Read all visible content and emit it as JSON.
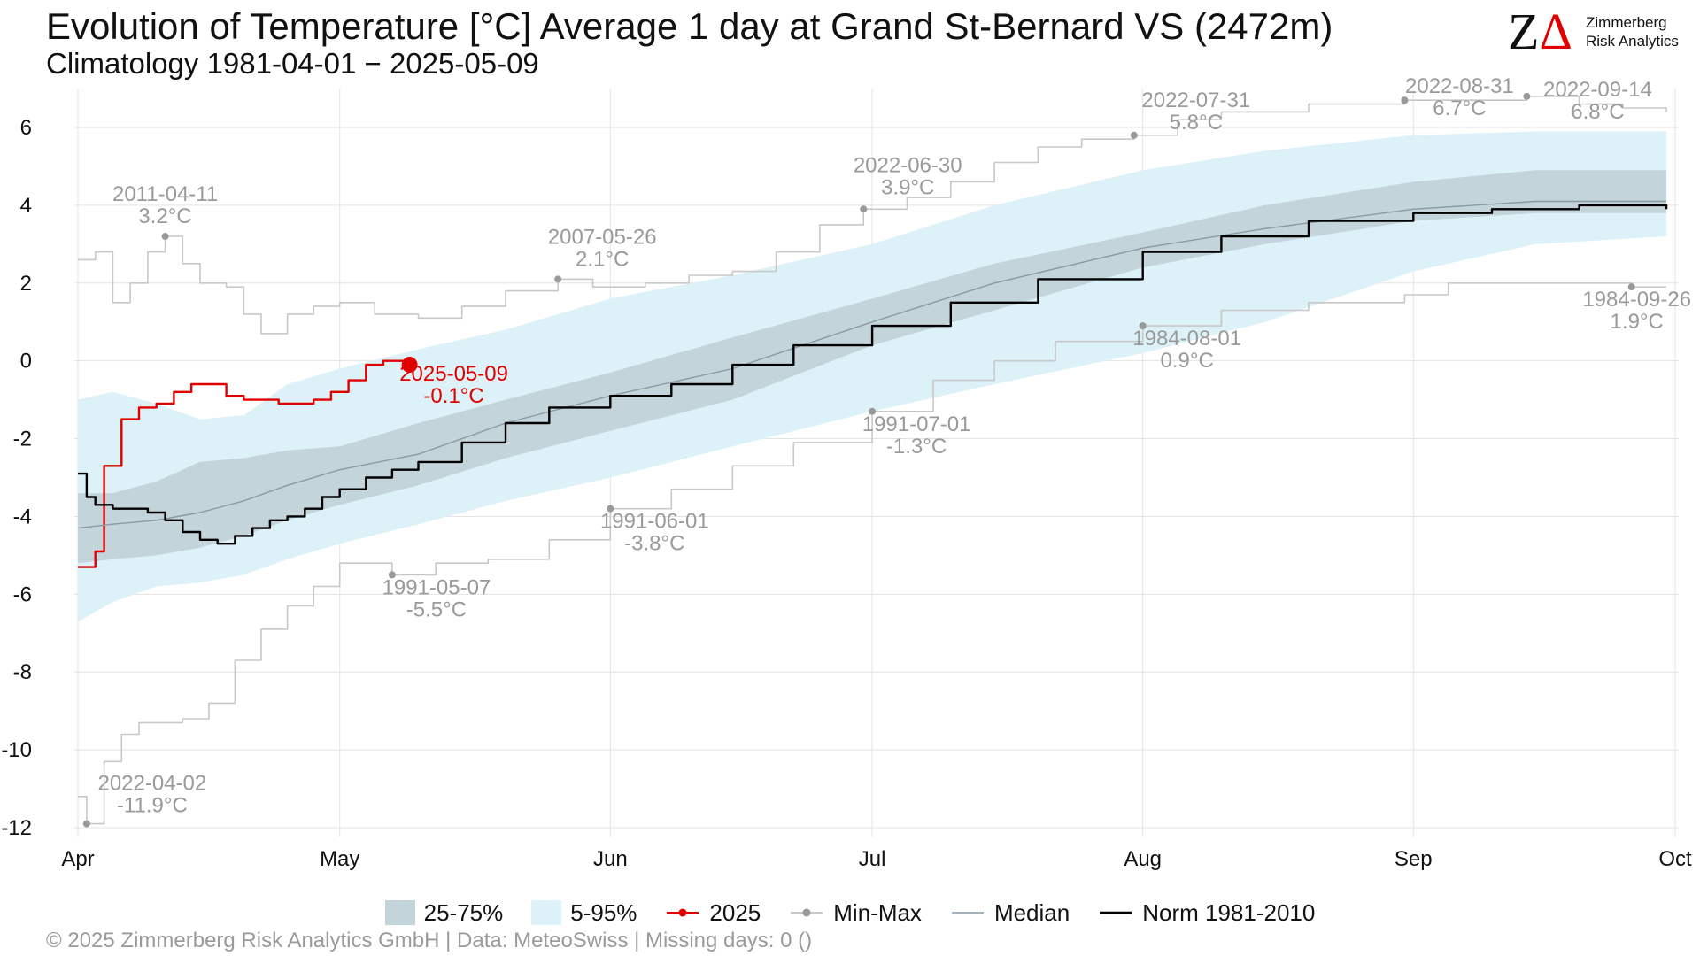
{
  "header": {
    "title": "Evolution of Temperature [°C] Average 1 day at Grand St-Bernard  VS (2472m)",
    "subtitle": "Climatology 1981-04-01 − 2025-05-09"
  },
  "logo": {
    "mark_z": "Z",
    "mark_delta": "Δ",
    "line1": "Zimmerberg",
    "line2": "Risk Analytics"
  },
  "legend": {
    "band_iqr": "25-75%",
    "band_90": "5-95%",
    "current": "2025",
    "minmax": "Min-Max",
    "median": "Median",
    "norm": "Norm 1981-2010"
  },
  "footer": "©  2025 Zimmerberg Risk Analytics GmbH | Data: MeteoSwiss | Missing days: 0 ()",
  "colors": {
    "current": "#e00000",
    "minmax": "#c8c8c8",
    "minmax_marker": "#999999",
    "median": "#8a9aa4",
    "norm": "#000000",
    "band_iqr": "#c3d4da",
    "band_90": "#ddf1f8",
    "grid": "#e3e3e3"
  },
  "chart_data": {
    "type": "line",
    "x_axis": {
      "type": "date",
      "range": [
        "1981-04-01",
        "1981-10-01"
      ],
      "ticks": [
        {
          "date": "04-01",
          "label": "Apr"
        },
        {
          "date": "05-01",
          "label": "May"
        },
        {
          "date": "06-01",
          "label": "Jun"
        },
        {
          "date": "07-01",
          "label": "Jul"
        },
        {
          "date": "08-01",
          "label": "Aug"
        },
        {
          "date": "09-01",
          "label": "Sep"
        },
        {
          "date": "10-01",
          "label": "Oct"
        }
      ]
    },
    "y_axis": {
      "ylim": [
        -12,
        7
      ],
      "ticks": [
        -12,
        -10,
        -8,
        -6,
        -4,
        -2,
        0,
        2,
        4,
        6
      ]
    },
    "grid": true,
    "legend_position": "bottom",
    "band_5_95": {
      "x": [
        "04-01",
        "04-05",
        "04-10",
        "04-15",
        "04-20",
        "04-25",
        "05-01",
        "05-10",
        "05-20",
        "06-01",
        "06-15",
        "07-01",
        "07-15",
        "08-01",
        "08-15",
        "09-01",
        "09-15",
        "09-30"
      ],
      "lower": [
        -6.7,
        -6.2,
        -5.8,
        -5.7,
        -5.5,
        -5.1,
        -4.7,
        -4.2,
        -3.6,
        -3.0,
        -2.2,
        -1.3,
        -0.6,
        0.2,
        1.0,
        2.3,
        3.0,
        3.2
      ],
      "upper": [
        -1.0,
        -0.8,
        -1.1,
        -1.5,
        -1.4,
        -0.6,
        -0.2,
        0.3,
        0.8,
        1.6,
        2.2,
        3.0,
        4.0,
        4.9,
        5.4,
        5.8,
        5.9,
        5.9
      ]
    },
    "band_25_75": {
      "x": [
        "04-01",
        "04-05",
        "04-10",
        "04-15",
        "04-20",
        "04-25",
        "05-01",
        "05-10",
        "05-20",
        "06-01",
        "06-15",
        "07-01",
        "07-15",
        "08-01",
        "08-15",
        "09-01",
        "09-15",
        "09-30"
      ],
      "lower": [
        -5.2,
        -5.1,
        -5.0,
        -4.8,
        -4.5,
        -4.1,
        -3.7,
        -3.2,
        -2.5,
        -1.8,
        -1.0,
        0.4,
        1.3,
        2.4,
        3.0,
        3.6,
        3.8,
        3.8
      ],
      "upper": [
        -3.4,
        -3.4,
        -3.1,
        -2.6,
        -2.5,
        -2.3,
        -2.2,
        -1.6,
        -1.0,
        -0.3,
        0.6,
        1.6,
        2.5,
        3.3,
        4.0,
        4.6,
        4.9,
        4.9
      ]
    },
    "series": [
      {
        "name": "2025",
        "color": "#e00000",
        "x": [
          "04-01",
          "04-03",
          "04-04",
          "04-06",
          "04-08",
          "04-10",
          "04-12",
          "04-14",
          "04-16",
          "04-18",
          "04-20",
          "04-22",
          "04-24",
          "04-26",
          "04-28",
          "04-30",
          "05-02",
          "05-04",
          "05-06",
          "05-09"
        ],
        "y": [
          -5.3,
          -4.9,
          -2.7,
          -1.5,
          -1.2,
          -1.1,
          -0.8,
          -0.6,
          -0.6,
          -0.9,
          -1.0,
          -1.0,
          -1.1,
          -1.1,
          -1.0,
          -0.8,
          -0.5,
          -0.1,
          0.0,
          -0.1
        ]
      },
      {
        "name": "Min-Max",
        "role": "max",
        "color": "#c8c8c8",
        "x": [
          "04-01",
          "04-03",
          "04-05",
          "04-07",
          "04-09",
          "04-11",
          "04-13",
          "04-15",
          "04-18",
          "04-20",
          "04-22",
          "04-25",
          "04-28",
          "05-01",
          "05-05",
          "05-10",
          "05-15",
          "05-20",
          "05-26",
          "05-30",
          "06-05",
          "06-10",
          "06-15",
          "06-20",
          "06-25",
          "06-30",
          "07-05",
          "07-10",
          "07-15",
          "07-20",
          "07-25",
          "07-31",
          "08-05",
          "08-10",
          "08-20",
          "08-31",
          "09-05",
          "09-10",
          "09-14",
          "09-20",
          "09-25",
          "09-30"
        ],
        "y": [
          2.6,
          2.8,
          1.5,
          2.0,
          2.8,
          3.2,
          2.5,
          2.0,
          1.9,
          1.2,
          0.7,
          1.2,
          1.4,
          1.5,
          1.2,
          1.1,
          1.4,
          1.8,
          2.1,
          1.9,
          2.0,
          2.2,
          2.3,
          2.8,
          3.5,
          3.9,
          4.2,
          4.6,
          5.1,
          5.5,
          5.7,
          5.8,
          6.2,
          6.4,
          6.6,
          6.7,
          6.7,
          6.7,
          6.8,
          6.6,
          6.5,
          6.4
        ]
      },
      {
        "name": "Min-Max",
        "role": "min",
        "color": "#c8c8c8",
        "x": [
          "04-01",
          "04-02",
          "04-04",
          "04-06",
          "04-08",
          "04-10",
          "04-13",
          "04-16",
          "04-19",
          "04-22",
          "04-25",
          "04-28",
          "05-01",
          "05-04",
          "05-07",
          "05-12",
          "05-18",
          "05-25",
          "06-01",
          "06-08",
          "06-15",
          "06-22",
          "07-01",
          "07-08",
          "07-15",
          "07-22",
          "08-01",
          "08-10",
          "08-20",
          "08-31",
          "09-05",
          "09-10",
          "09-15",
          "09-20",
          "09-26",
          "09-30"
        ],
        "y": [
          -11.2,
          -11.9,
          -10.3,
          -9.6,
          -9.3,
          -9.3,
          -9.2,
          -8.8,
          -7.7,
          -6.9,
          -6.3,
          -5.8,
          -5.2,
          -5.2,
          -5.5,
          -5.2,
          -5.1,
          -4.6,
          -3.8,
          -3.3,
          -2.7,
          -2.1,
          -1.3,
          -0.5,
          0.0,
          0.5,
          0.9,
          1.3,
          1.5,
          1.7,
          2.0,
          2.0,
          2.0,
          2.0,
          1.9,
          1.9
        ]
      },
      {
        "name": "Median",
        "color": "#8a9aa4",
        "x": [
          "04-01",
          "04-05",
          "04-10",
          "04-15",
          "04-20",
          "04-25",
          "05-01",
          "05-10",
          "05-20",
          "06-01",
          "06-15",
          "07-01",
          "07-15",
          "08-01",
          "08-15",
          "09-01",
          "09-15",
          "09-30"
        ],
        "y": [
          -4.3,
          -4.2,
          -4.1,
          -3.9,
          -3.6,
          -3.2,
          -2.8,
          -2.4,
          -1.6,
          -0.9,
          -0.2,
          1.0,
          2.0,
          2.9,
          3.4,
          3.9,
          4.1,
          4.1
        ]
      },
      {
        "name": "Norm 1981-2010",
        "color": "#000000",
        "x": [
          "04-01",
          "04-02",
          "04-03",
          "04-05",
          "04-07",
          "04-09",
          "04-11",
          "04-13",
          "04-15",
          "04-17",
          "04-19",
          "04-21",
          "04-23",
          "04-25",
          "04-27",
          "04-29",
          "05-01",
          "05-04",
          "05-07",
          "05-10",
          "05-15",
          "05-20",
          "05-25",
          "06-01",
          "06-08",
          "06-15",
          "06-22",
          "07-01",
          "07-10",
          "07-20",
          "08-01",
          "08-10",
          "08-20",
          "09-01",
          "09-10",
          "09-20",
          "09-30"
        ],
        "y": [
          -2.9,
          -3.5,
          -3.7,
          -3.8,
          -3.8,
          -3.9,
          -4.1,
          -4.4,
          -4.6,
          -4.7,
          -4.5,
          -4.3,
          -4.1,
          -4.0,
          -3.8,
          -3.5,
          -3.3,
          -3.0,
          -2.8,
          -2.6,
          -2.1,
          -1.6,
          -1.2,
          -0.9,
          -0.6,
          -0.1,
          0.4,
          0.9,
          1.5,
          2.1,
          2.8,
          3.2,
          3.6,
          3.8,
          3.9,
          4.0,
          3.9
        ]
      }
    ],
    "annotations": [
      {
        "x": "04-11",
        "y": 3.2,
        "date": "2011-04-11",
        "value": "3.2°C",
        "kind": "max"
      },
      {
        "x": "05-26",
        "y": 2.1,
        "date": "2007-05-26",
        "value": "2.1°C",
        "kind": "max"
      },
      {
        "x": "06-30",
        "y": 3.9,
        "date": "2022-06-30",
        "value": "3.9°C",
        "kind": "max"
      },
      {
        "x": "07-31",
        "y": 5.8,
        "date": "2022-07-31",
        "value": "5.8°C",
        "kind": "max"
      },
      {
        "x": "08-31",
        "y": 6.7,
        "date": "2022-08-31",
        "value": "6.7°C",
        "kind": "max"
      },
      {
        "x": "09-14",
        "y": 6.8,
        "date": "2022-09-14",
        "value": "6.8°C",
        "kind": "max"
      },
      {
        "x": "04-02",
        "y": -11.9,
        "date": "2022-04-02",
        "value": "-11.9°C",
        "kind": "min"
      },
      {
        "x": "05-07",
        "y": -5.5,
        "date": "1991-05-07",
        "value": "-5.5°C",
        "kind": "min"
      },
      {
        "x": "06-01",
        "y": -3.8,
        "date": "1991-06-01",
        "value": "-3.8°C",
        "kind": "min"
      },
      {
        "x": "07-01",
        "y": -1.3,
        "date": "1991-07-01",
        "value": "-1.3°C",
        "kind": "min"
      },
      {
        "x": "08-01",
        "y": 0.9,
        "date": "1984-08-01",
        "value": "0.9°C",
        "kind": "min"
      },
      {
        "x": "09-26",
        "y": 1.9,
        "date": "1984-09-26",
        "value": "1.9°C",
        "kind": "min"
      },
      {
        "x": "05-09",
        "y": -0.1,
        "date": "2025-05-09",
        "value": "-0.1°C",
        "kind": "current"
      }
    ]
  }
}
